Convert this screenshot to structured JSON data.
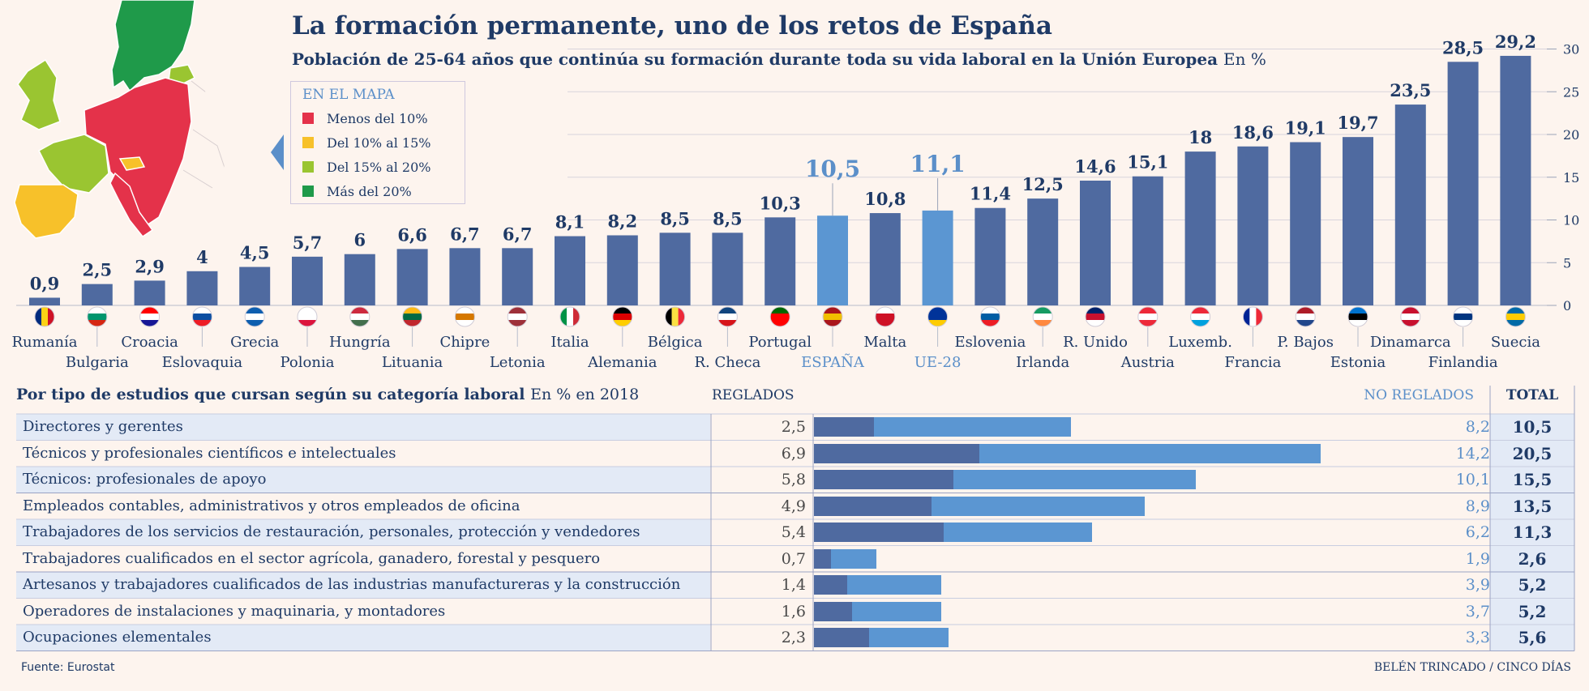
{
  "header": {
    "title": "La formación permanente, uno de los retos de España",
    "subtitle": "Población de 25-64 años que continúa su formación durante toda su vida laboral en la Unión Europea",
    "subtitle_unit": "En %"
  },
  "legend": {
    "title": "EN EL MAPA",
    "items": [
      {
        "label": "Menos del 10%",
        "color": "#e4324a"
      },
      {
        "label": "Del 10% al 15%",
        "color": "#f7c12a"
      },
      {
        "label": "Del 15% al 20%",
        "color": "#9ac531"
      },
      {
        "label": "Más del 20%",
        "color": "#1f9a4a"
      }
    ]
  },
  "colors": {
    "bar": "#4f6aa0",
    "highlight": "#5b96d2",
    "highlight_text": "#5b8fc9",
    "text": "#1f3a66"
  },
  "chart_data": [
    {
      "type": "bar",
      "title": "La formación permanente, uno de los retos de España",
      "ylabel": "En %",
      "ylim": [
        0,
        30
      ],
      "yticks": [
        0,
        5,
        10,
        15,
        20,
        25,
        30
      ],
      "grid": true,
      "categories": [
        "Rumanía",
        "Bulgaria",
        "Croacia",
        "Eslovaquia",
        "Grecia",
        "Polonia",
        "Hungría",
        "Lituania",
        "Chipre",
        "Letonia",
        "Italia",
        "Alemania",
        "Bélgica",
        "R. Checa",
        "Portugal",
        "ESPAÑA",
        "Malta",
        "UE-28",
        "Eslovenia",
        "Irlanda",
        "R. Unido",
        "Austria",
        "Luxemb.",
        "Francia",
        "P. Bajos",
        "Estonia",
        "Dinamarca",
        "Finlandia",
        "Suecia"
      ],
      "values": [
        0.9,
        2.5,
        2.9,
        4,
        4.5,
        5.7,
        6,
        6.6,
        6.7,
        6.7,
        8.1,
        8.2,
        8.5,
        8.5,
        10.3,
        10.5,
        10.8,
        11.1,
        11.4,
        12.5,
        14.6,
        15.1,
        18,
        18.6,
        19.1,
        19.7,
        23.5,
        28.5,
        29.2
      ],
      "value_labels": [
        "0,9",
        "2,5",
        "2,9",
        "4",
        "4,5",
        "5,7",
        "6",
        "6,6",
        "6,7",
        "6,7",
        "8,1",
        "8,2",
        "8,5",
        "8,5",
        "10,3",
        "10,5",
        "10,8",
        "11,1",
        "11,4",
        "12,5",
        "14,6",
        "15,1",
        "18",
        "18,6",
        "19,1",
        "19,7",
        "23,5",
        "28,5",
        "29,2"
      ],
      "highlighted": [
        "ESPAÑA",
        "UE-28"
      ]
    },
    {
      "type": "bar",
      "subtype": "stacked-horizontal",
      "title": "Por tipo de estudios que cursan según su categoría laboral",
      "unit": "En % en 2018",
      "series_labels": {
        "reg": "REGLADOS",
        "noreg": "NO REGLADOS",
        "total": "TOTAL"
      },
      "rows": [
        {
          "label": "Directores y gerentes",
          "reg": 2.5,
          "noreg": 8.2,
          "total": 10.5,
          "reg_s": "2,5",
          "noreg_s": "8,2",
          "total_s": "10,5"
        },
        {
          "label": "Técnicos y profesionales científicos e intelectuales",
          "reg": 6.9,
          "noreg": 14.2,
          "total": 20.5,
          "reg_s": "6,9",
          "noreg_s": "14,2",
          "total_s": "20,5"
        },
        {
          "label": "Técnicos: profesionales de apoyo",
          "reg": 5.8,
          "noreg": 10.1,
          "total": 15.5,
          "reg_s": "5,8",
          "noreg_s": "10,1",
          "total_s": "15,5"
        },
        {
          "label": "Empleados contables, administrativos y otros empleados de oficina",
          "reg": 4.9,
          "noreg": 8.9,
          "total": 13.5,
          "reg_s": "4,9",
          "noreg_s": "8,9",
          "total_s": "13,5"
        },
        {
          "label": "Trabajadores de los servicios de restauración, personales, protección y vendedores",
          "reg": 5.4,
          "noreg": 6.2,
          "total": 11.3,
          "reg_s": "5,4",
          "noreg_s": "6,2",
          "total_s": "11,3"
        },
        {
          "label": "Trabajadores cualificados en el sector agrícola, ganadero, forestal y pesquero",
          "reg": 0.7,
          "noreg": 1.9,
          "total": 2.6,
          "reg_s": "0,7",
          "noreg_s": "1,9",
          "total_s": "2,6"
        },
        {
          "label": "Artesanos y trabajadores cualificados de las industrias manufactureras y la construcción",
          "reg": 1.4,
          "noreg": 3.9,
          "total": 5.2,
          "reg_s": "1,4",
          "noreg_s": "3,9",
          "total_s": "5,2"
        },
        {
          "label": "Operadores de instalaciones y maquinaria, y montadores",
          "reg": 1.6,
          "noreg": 3.7,
          "total": 5.2,
          "reg_s": "1,6",
          "noreg_s": "3,7",
          "total_s": "5,2"
        },
        {
          "label": "Ocupaciones elementales",
          "reg": 2.3,
          "noreg": 3.3,
          "total": 5.6,
          "reg_s": "2,3",
          "noreg_s": "3,3",
          "total_s": "5,6"
        }
      ]
    }
  ],
  "footer": {
    "source": "Fuente: Eurostat",
    "credit": "BELÉN TRINCADO / CINCO DÍAS"
  }
}
